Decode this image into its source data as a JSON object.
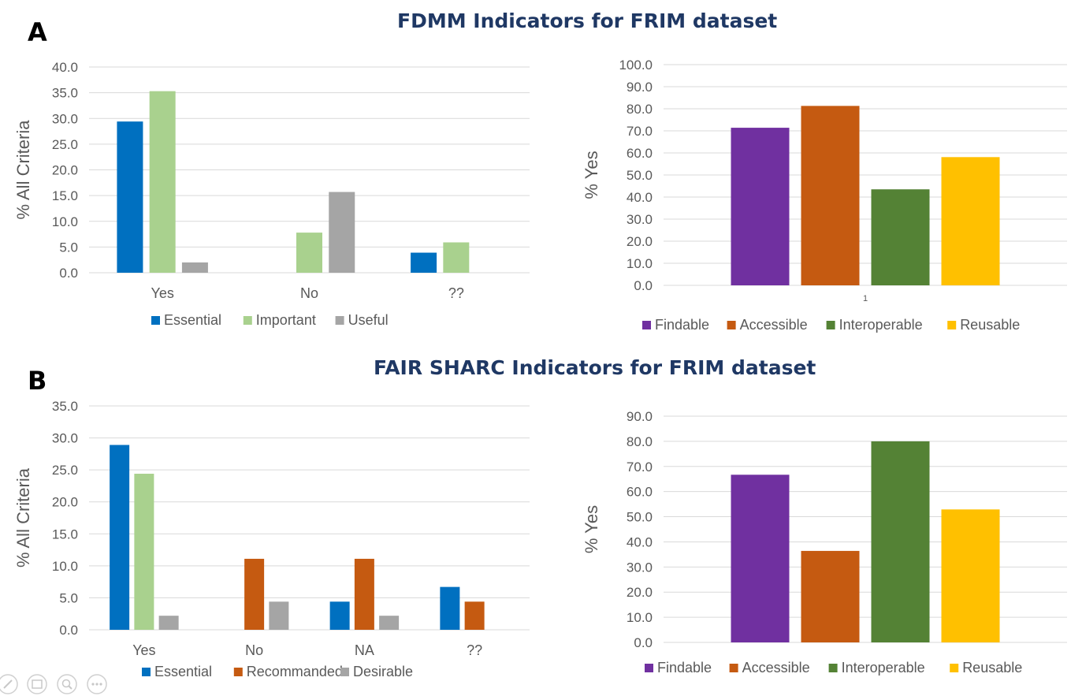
{
  "panels": {
    "A": {
      "letter": "A",
      "title": "FDMM Indicators for FRIM dataset"
    },
    "B": {
      "letter": "B",
      "title": "FAIR SHARC Indicators for FRIM dataset"
    }
  },
  "colors": {
    "essential": "#0070c0",
    "important": "#a9d18e",
    "useful": "#a5a5a5",
    "recommanded": "#c55a11",
    "desirable": "#a5a5a5",
    "findable": "#7030a0",
    "accessible": "#c55a11",
    "interoperable": "#548235",
    "reusable": "#ffc000",
    "grid": "#d9d9d9",
    "axis_text": "#595959"
  },
  "chart_data": [
    {
      "id": "A-left",
      "type": "bar",
      "ylabel": "% All Criteria",
      "xlabel": "",
      "ylim": [
        0,
        40
      ],
      "ytick_step": 5,
      "categories": [
        "Yes",
        "No",
        "??"
      ],
      "series": [
        {
          "name": "Essential",
          "color": "#0070c0",
          "values": [
            29.4,
            0,
            3.9
          ]
        },
        {
          "name": "Important",
          "color": "#a9d18e",
          "values": [
            35.3,
            7.8,
            5.9
          ]
        },
        {
          "name": "Useful",
          "color": "#a5a5a5",
          "values": [
            2.0,
            15.7,
            0
          ]
        }
      ],
      "legend": "bottom",
      "grid": true
    },
    {
      "id": "A-right",
      "type": "bar",
      "ylabel": "% Yes",
      "xlabel": "",
      "ylim": [
        0,
        100
      ],
      "ytick_step": 10,
      "categories": [
        "1"
      ],
      "series": [
        {
          "name": "Findable",
          "color": "#7030a0",
          "values": [
            71.4
          ]
        },
        {
          "name": "Accessible",
          "color": "#c55a11",
          "values": [
            81.3
          ]
        },
        {
          "name": "Interoperable",
          "color": "#548235",
          "values": [
            43.5
          ]
        },
        {
          "name": "Reusable",
          "color": "#ffc000",
          "values": [
            58.1
          ]
        }
      ],
      "legend": "bottom",
      "grid": true
    },
    {
      "id": "B-left",
      "type": "bar",
      "ylabel": "% All Criteria",
      "xlabel": "",
      "ylim": [
        0,
        35
      ],
      "ytick_step": 5,
      "categories": [
        "Yes",
        "No",
        "NA",
        "??"
      ],
      "series": [
        {
          "name": "Essential",
          "color": "#0070c0",
          "values": [
            28.9,
            0,
            4.4,
            6.7
          ]
        },
        {
          "name": "Recommanded",
          "color": "#c55a11",
          "values": [
            24.4,
            11.1,
            11.1,
            4.4
          ]
        },
        {
          "name": "Desirable",
          "color": "#a5a5a5",
          "values": [
            2.2,
            4.4,
            2.2,
            0
          ]
        }
      ],
      "series_colors_override": {
        "0": [
          "#0070c0",
          "#a9d18e",
          "#a5a5a5"
        ]
      },
      "legend": "bottom",
      "grid": true
    },
    {
      "id": "B-right",
      "type": "bar",
      "ylabel": "% Yes",
      "xlabel": "",
      "ylim": [
        0,
        90
      ],
      "ytick_step": 10,
      "categories": [
        ""
      ],
      "series": [
        {
          "name": "Findable",
          "color": "#7030a0",
          "values": [
            66.7
          ]
        },
        {
          "name": "Accessible",
          "color": "#c55a11",
          "values": [
            36.4
          ]
        },
        {
          "name": "Interoperable",
          "color": "#548235",
          "values": [
            80.0
          ]
        },
        {
          "name": "Reusable",
          "color": "#ffc000",
          "values": [
            52.9
          ]
        }
      ],
      "legend": "bottom",
      "grid": true
    }
  ],
  "toolbar": {
    "icons": [
      "pen-icon",
      "slides-icon",
      "zoom-icon",
      "more-icon"
    ]
  }
}
